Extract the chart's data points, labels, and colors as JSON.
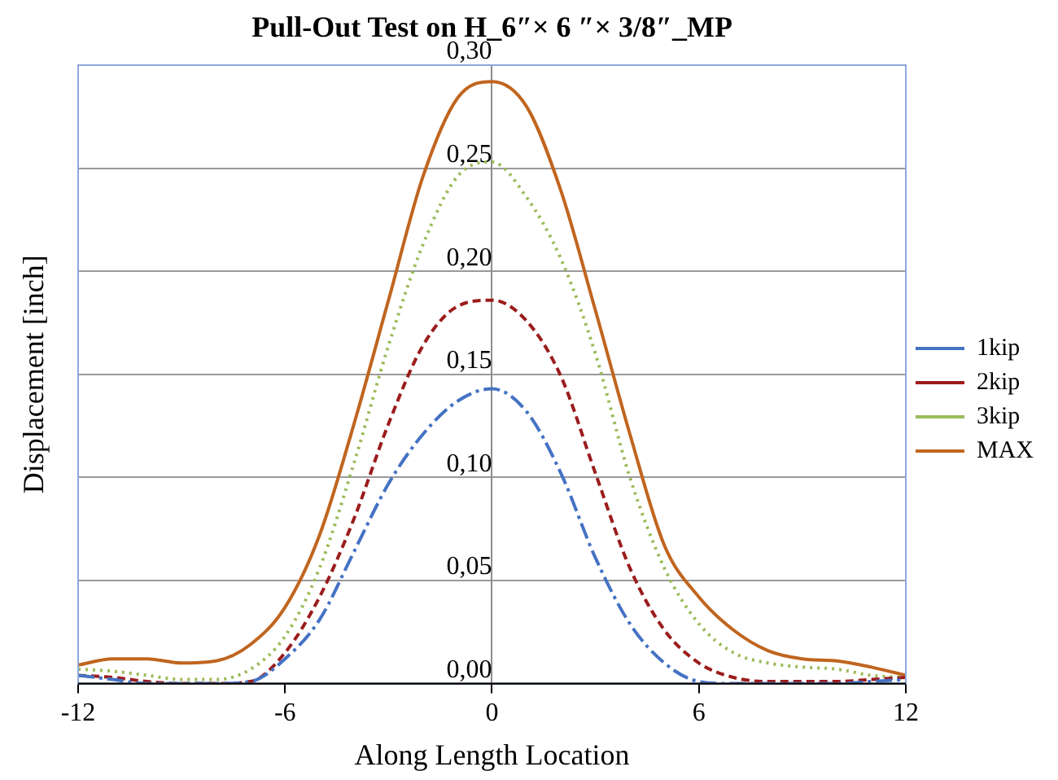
{
  "chart_data": {
    "type": "line",
    "title": "Pull-Out Test on H_6″× 6 ″× 3/8″_MP",
    "xlabel": "Along Length Location",
    "ylabel": "Displacement [inch]",
    "x": [
      -12,
      -11,
      -10,
      -9,
      -8,
      -7,
      -6,
      -5,
      -4,
      -3,
      -2,
      -1,
      0,
      1,
      2,
      3,
      4,
      5,
      6,
      7,
      8,
      9,
      10,
      11,
      12
    ],
    "series": [
      {
        "name": "1kip",
        "color": "#4472c4",
        "line_style": "dashdot",
        "values": [
          0.004,
          0.002,
          0,
          0,
          0,
          0.001,
          0.012,
          0.031,
          0.064,
          0.097,
          0.121,
          0.137,
          0.143,
          0.132,
          0.102,
          0.061,
          0.029,
          0.01,
          0.001,
          0,
          0,
          0,
          0,
          0.001,
          0.002
        ]
      },
      {
        "name": "2kip",
        "color": "#9b1c1c",
        "line_style": "dashed",
        "values": [
          0.004,
          0.003,
          0.001,
          0,
          0,
          0.001,
          0.015,
          0.042,
          0.08,
          0.126,
          0.164,
          0.183,
          0.186,
          0.176,
          0.149,
          0.102,
          0.056,
          0.026,
          0.01,
          0.003,
          0.001,
          0.001,
          0.001,
          0.002,
          0.003
        ]
      },
      {
        "name": "3kip",
        "color": "#9bbb59",
        "line_style": "dotted",
        "values": [
          0.007,
          0.006,
          0.004,
          0.002,
          0.002,
          0.007,
          0.023,
          0.056,
          0.107,
          0.164,
          0.213,
          0.246,
          0.253,
          0.236,
          0.206,
          0.16,
          0.1,
          0.056,
          0.029,
          0.015,
          0.01,
          0.008,
          0.007,
          0.004,
          0.003
        ]
      },
      {
        "name": "MAX",
        "color": "#c0651f",
        "line_style": "solid",
        "values": [
          0.009,
          0.012,
          0.012,
          0.01,
          0.011,
          0.019,
          0.037,
          0.072,
          0.126,
          0.186,
          0.246,
          0.284,
          0.292,
          0.28,
          0.239,
          0.181,
          0.121,
          0.067,
          0.042,
          0.026,
          0.016,
          0.012,
          0.011,
          0.008,
          0.004
        ]
      }
    ],
    "xlim": [
      -12,
      12
    ],
    "xticks": [
      -12,
      -6,
      0,
      6,
      12
    ],
    "ylim": [
      0,
      0.3
    ],
    "yticks": [
      {
        "value": 0,
        "label": "0,00"
      },
      {
        "value": 0.05,
        "label": "0,05"
      },
      {
        "value": 0.1,
        "label": "0,10"
      },
      {
        "value": 0.15,
        "label": "0,15"
      },
      {
        "value": 0.2,
        "label": "0,20"
      },
      {
        "value": 0.25,
        "label": "0,25"
      },
      {
        "value": 0.3,
        "label": "0,30"
      }
    ],
    "grid": "y",
    "legend": "right",
    "marker": "none"
  }
}
